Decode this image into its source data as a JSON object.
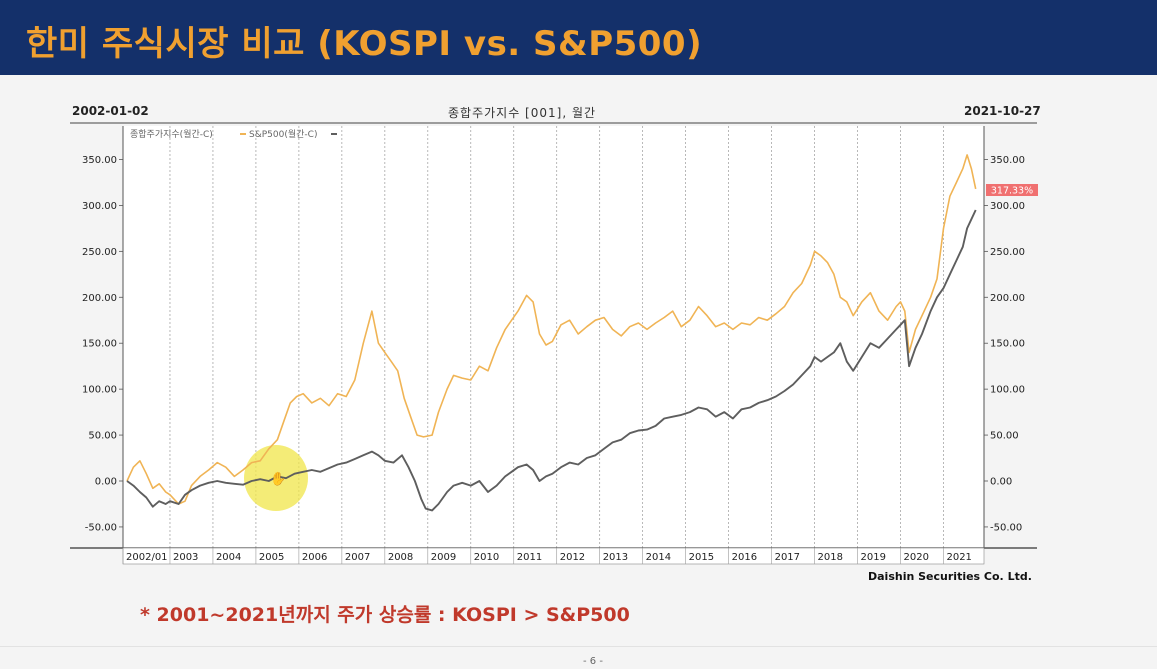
{
  "slide": {
    "title": "한미 주식시장 비교 (KOSPI vs. S&P500)",
    "note": "*  2001~2021년까지 주가 상승률 :   KOSPI > S&P500",
    "page_number": "- 6 -"
  },
  "chart_header": {
    "date_start": "2002-01-02",
    "title": "종합주가지수 [001], 월간",
    "date_end": "2021-10-27",
    "credit": "Daishin Securities Co. Ltd.",
    "last_value_badge": "317.33%"
  },
  "colors": {
    "header_bg": "#14306a",
    "title": "#f0a030",
    "kospi": "#f0b455",
    "sp500": "#5e5e5e",
    "badge": "#f07070",
    "note": "#c0392b"
  },
  "chart_data": {
    "type": "line",
    "legend": [
      "종합주가지수(월간-C)",
      "S&P500(월간-C)"
    ],
    "legend_position": "top-left",
    "x_ticks": [
      "2002/01",
      "2003",
      "2004",
      "2005",
      "2006",
      "2007",
      "2008",
      "2009",
      "2010",
      "2011",
      "2012",
      "2013",
      "2014",
      "2015",
      "2016",
      "2017",
      "2018",
      "2019",
      "2020",
      "2021"
    ],
    "y_ticks": [
      "350.00",
      "300.00",
      "250.00",
      "200.00",
      "150.00",
      "100.00",
      "50.00",
      "0.00",
      "-50.00"
    ],
    "ylim": [
      -60,
      370
    ],
    "xlim": [
      2002.0,
      2021.85
    ],
    "grid": "vertical-dotted",
    "series": [
      {
        "name": "종합주가지수(월간-C)",
        "points": [
          [
            2002.0,
            0
          ],
          [
            2002.15,
            15
          ],
          [
            2002.3,
            22
          ],
          [
            2002.45,
            8
          ],
          [
            2002.6,
            -8
          ],
          [
            2002.75,
            -3
          ],
          [
            2002.9,
            -12
          ],
          [
            2003.0,
            -15
          ],
          [
            2003.2,
            -25
          ],
          [
            2003.35,
            -22
          ],
          [
            2003.5,
            -5
          ],
          [
            2003.7,
            5
          ],
          [
            2003.9,
            12
          ],
          [
            2004.1,
            20
          ],
          [
            2004.3,
            15
          ],
          [
            2004.5,
            5
          ],
          [
            2004.7,
            12
          ],
          [
            2004.9,
            20
          ],
          [
            2005.1,
            22
          ],
          [
            2005.3,
            35
          ],
          [
            2005.5,
            45
          ],
          [
            2005.65,
            65
          ],
          [
            2005.8,
            85
          ],
          [
            2005.95,
            92
          ],
          [
            2006.1,
            95
          ],
          [
            2006.3,
            85
          ],
          [
            2006.5,
            90
          ],
          [
            2006.7,
            82
          ],
          [
            2006.9,
            95
          ],
          [
            2007.1,
            92
          ],
          [
            2007.3,
            110
          ],
          [
            2007.5,
            150
          ],
          [
            2007.7,
            185
          ],
          [
            2007.85,
            150
          ],
          [
            2008.0,
            140
          ],
          [
            2008.15,
            130
          ],
          [
            2008.3,
            120
          ],
          [
            2008.45,
            90
          ],
          [
            2008.6,
            70
          ],
          [
            2008.75,
            50
          ],
          [
            2008.9,
            48
          ],
          [
            2009.1,
            50
          ],
          [
            2009.25,
            75
          ],
          [
            2009.45,
            100
          ],
          [
            2009.6,
            115
          ],
          [
            2009.8,
            112
          ],
          [
            2010.0,
            110
          ],
          [
            2010.2,
            125
          ],
          [
            2010.4,
            120
          ],
          [
            2010.6,
            145
          ],
          [
            2010.8,
            165
          ],
          [
            2010.95,
            175
          ],
          [
            2011.1,
            185
          ],
          [
            2011.3,
            202
          ],
          [
            2011.45,
            195
          ],
          [
            2011.6,
            160
          ],
          [
            2011.75,
            148
          ],
          [
            2011.9,
            152
          ],
          [
            2012.1,
            170
          ],
          [
            2012.3,
            175
          ],
          [
            2012.5,
            160
          ],
          [
            2012.7,
            168
          ],
          [
            2012.9,
            175
          ],
          [
            2013.1,
            178
          ],
          [
            2013.3,
            165
          ],
          [
            2013.5,
            158
          ],
          [
            2013.7,
            168
          ],
          [
            2013.9,
            172
          ],
          [
            2014.1,
            165
          ],
          [
            2014.3,
            172
          ],
          [
            2014.5,
            178
          ],
          [
            2014.7,
            185
          ],
          [
            2014.9,
            168
          ],
          [
            2015.1,
            175
          ],
          [
            2015.3,
            190
          ],
          [
            2015.5,
            180
          ],
          [
            2015.7,
            168
          ],
          [
            2015.9,
            172
          ],
          [
            2016.1,
            165
          ],
          [
            2016.3,
            172
          ],
          [
            2016.5,
            170
          ],
          [
            2016.7,
            178
          ],
          [
            2016.9,
            175
          ],
          [
            2017.1,
            182
          ],
          [
            2017.3,
            190
          ],
          [
            2017.5,
            205
          ],
          [
            2017.7,
            215
          ],
          [
            2017.9,
            235
          ],
          [
            2018.0,
            250
          ],
          [
            2018.15,
            245
          ],
          [
            2018.3,
            238
          ],
          [
            2018.45,
            225
          ],
          [
            2018.6,
            200
          ],
          [
            2018.75,
            195
          ],
          [
            2018.9,
            180
          ],
          [
            2019.1,
            195
          ],
          [
            2019.3,
            205
          ],
          [
            2019.5,
            185
          ],
          [
            2019.7,
            175
          ],
          [
            2019.9,
            190
          ],
          [
            2020.0,
            195
          ],
          [
            2020.1,
            185
          ],
          [
            2020.2,
            140
          ],
          [
            2020.35,
            165
          ],
          [
            2020.5,
            180
          ],
          [
            2020.7,
            200
          ],
          [
            2020.85,
            220
          ],
          [
            2021.0,
            275
          ],
          [
            2021.15,
            310
          ],
          [
            2021.3,
            325
          ],
          [
            2021.45,
            340
          ],
          [
            2021.55,
            355
          ],
          [
            2021.65,
            340
          ],
          [
            2021.75,
            318
          ]
        ]
      },
      {
        "name": "S&P500(월간-C)",
        "points": [
          [
            2002.0,
            0
          ],
          [
            2002.15,
            -5
          ],
          [
            2002.3,
            -12
          ],
          [
            2002.45,
            -18
          ],
          [
            2002.6,
            -28
          ],
          [
            2002.75,
            -22
          ],
          [
            2002.9,
            -25
          ],
          [
            2003.0,
            -22
          ],
          [
            2003.2,
            -25
          ],
          [
            2003.35,
            -15
          ],
          [
            2003.5,
            -10
          ],
          [
            2003.7,
            -5
          ],
          [
            2003.9,
            -2
          ],
          [
            2004.1,
            0
          ],
          [
            2004.3,
            -2
          ],
          [
            2004.5,
            -3
          ],
          [
            2004.7,
            -4
          ],
          [
            2004.9,
            0
          ],
          [
            2005.1,
            2
          ],
          [
            2005.3,
            0
          ],
          [
            2005.5,
            5
          ],
          [
            2005.7,
            3
          ],
          [
            2005.9,
            8
          ],
          [
            2006.1,
            10
          ],
          [
            2006.3,
            12
          ],
          [
            2006.5,
            10
          ],
          [
            2006.7,
            14
          ],
          [
            2006.9,
            18
          ],
          [
            2007.1,
            20
          ],
          [
            2007.3,
            24
          ],
          [
            2007.5,
            28
          ],
          [
            2007.7,
            32
          ],
          [
            2007.85,
            28
          ],
          [
            2008.0,
            22
          ],
          [
            2008.2,
            20
          ],
          [
            2008.4,
            28
          ],
          [
            2008.55,
            15
          ],
          [
            2008.7,
            0
          ],
          [
            2008.85,
            -20
          ],
          [
            2008.95,
            -30
          ],
          [
            2009.1,
            -32
          ],
          [
            2009.25,
            -25
          ],
          [
            2009.45,
            -12
          ],
          [
            2009.6,
            -5
          ],
          [
            2009.8,
            -2
          ],
          [
            2010.0,
            -5
          ],
          [
            2010.2,
            0
          ],
          [
            2010.4,
            -12
          ],
          [
            2010.6,
            -5
          ],
          [
            2010.8,
            5
          ],
          [
            2010.95,
            10
          ],
          [
            2011.1,
            15
          ],
          [
            2011.3,
            18
          ],
          [
            2011.45,
            12
          ],
          [
            2011.6,
            0
          ],
          [
            2011.75,
            5
          ],
          [
            2011.9,
            8
          ],
          [
            2012.1,
            15
          ],
          [
            2012.3,
            20
          ],
          [
            2012.5,
            18
          ],
          [
            2012.7,
            25
          ],
          [
            2012.9,
            28
          ],
          [
            2013.1,
            35
          ],
          [
            2013.3,
            42
          ],
          [
            2013.5,
            45
          ],
          [
            2013.7,
            52
          ],
          [
            2013.9,
            55
          ],
          [
            2014.1,
            56
          ],
          [
            2014.3,
            60
          ],
          [
            2014.5,
            68
          ],
          [
            2014.7,
            70
          ],
          [
            2014.9,
            72
          ],
          [
            2015.1,
            75
          ],
          [
            2015.3,
            80
          ],
          [
            2015.5,
            78
          ],
          [
            2015.7,
            70
          ],
          [
            2015.9,
            75
          ],
          [
            2016.1,
            68
          ],
          [
            2016.3,
            78
          ],
          [
            2016.5,
            80
          ],
          [
            2016.7,
            85
          ],
          [
            2016.9,
            88
          ],
          [
            2017.1,
            92
          ],
          [
            2017.3,
            98
          ],
          [
            2017.5,
            105
          ],
          [
            2017.7,
            115
          ],
          [
            2017.9,
            125
          ],
          [
            2018.0,
            135
          ],
          [
            2018.15,
            130
          ],
          [
            2018.3,
            135
          ],
          [
            2018.45,
            140
          ],
          [
            2018.6,
            150
          ],
          [
            2018.75,
            130
          ],
          [
            2018.9,
            120
          ],
          [
            2019.1,
            135
          ],
          [
            2019.3,
            150
          ],
          [
            2019.5,
            145
          ],
          [
            2019.7,
            155
          ],
          [
            2019.9,
            165
          ],
          [
            2020.0,
            170
          ],
          [
            2020.1,
            175
          ],
          [
            2020.2,
            125
          ],
          [
            2020.35,
            145
          ],
          [
            2020.5,
            160
          ],
          [
            2020.7,
            185
          ],
          [
            2020.85,
            200
          ],
          [
            2021.0,
            210
          ],
          [
            2021.15,
            225
          ],
          [
            2021.3,
            240
          ],
          [
            2021.45,
            255
          ],
          [
            2021.55,
            275
          ],
          [
            2021.65,
            285
          ],
          [
            2021.75,
            295
          ]
        ]
      }
    ]
  }
}
